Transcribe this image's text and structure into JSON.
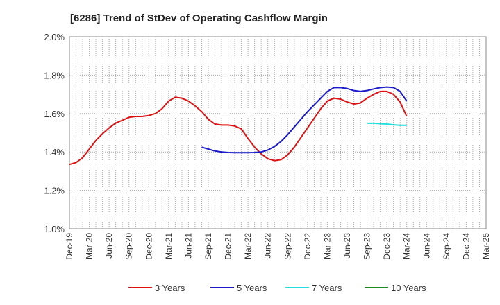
{
  "chart_data": {
    "type": "line",
    "title": "[6286]  Trend of StDev of Operating Cashflow Margin",
    "xlabel": "",
    "ylabel": "",
    "ylim": [
      1.0,
      2.0
    ],
    "yticks": [
      "1.0%",
      "1.2%",
      "1.4%",
      "1.6%",
      "1.8%",
      "2.0%"
    ],
    "x_start": "Dec-19",
    "x_end": "Mar-25",
    "xticks": [
      "Dec-19",
      "Mar-20",
      "Jun-20",
      "Sep-20",
      "Dec-20",
      "Mar-21",
      "Jun-21",
      "Sep-21",
      "Dec-21",
      "Mar-22",
      "Jun-22",
      "Sep-22",
      "Dec-22",
      "Mar-23",
      "Jun-23",
      "Sep-23",
      "Dec-23",
      "Mar-24",
      "Jun-24",
      "Sep-24",
      "Dec-24",
      "Mar-25"
    ],
    "grid": true,
    "legend_position": "bottom",
    "series": [
      {
        "name": "3 Years",
        "color": "#dd1111",
        "values": [
          [
            "Dec-19",
            1.335
          ],
          [
            "Jan-20",
            1.345
          ],
          [
            "Feb-20",
            1.37
          ],
          [
            "Mar-20",
            1.415
          ],
          [
            "Apr-20",
            1.46
          ],
          [
            "May-20",
            1.495
          ],
          [
            "Jun-20",
            1.525
          ],
          [
            "Jul-20",
            1.55
          ],
          [
            "Aug-20",
            1.565
          ],
          [
            "Sep-20",
            1.58
          ],
          [
            "Oct-20",
            1.585
          ],
          [
            "Nov-20",
            1.585
          ],
          [
            "Dec-20",
            1.59
          ],
          [
            "Jan-21",
            1.6
          ],
          [
            "Feb-21",
            1.625
          ],
          [
            "Mar-21",
            1.665
          ],
          [
            "Apr-21",
            1.685
          ],
          [
            "May-21",
            1.68
          ],
          [
            "Jun-21",
            1.665
          ],
          [
            "Jul-21",
            1.64
          ],
          [
            "Aug-21",
            1.61
          ],
          [
            "Sep-21",
            1.57
          ],
          [
            "Oct-21",
            1.545
          ],
          [
            "Nov-21",
            1.54
          ],
          [
            "Dec-21",
            1.54
          ],
          [
            "Jan-22",
            1.535
          ],
          [
            "Feb-22",
            1.52
          ],
          [
            "Mar-22",
            1.47
          ],
          [
            "Apr-22",
            1.425
          ],
          [
            "May-22",
            1.39
          ],
          [
            "Jun-22",
            1.365
          ],
          [
            "Jul-22",
            1.355
          ],
          [
            "Aug-22",
            1.36
          ],
          [
            "Sep-22",
            1.385
          ],
          [
            "Oct-22",
            1.425
          ],
          [
            "Nov-22",
            1.475
          ],
          [
            "Dec-22",
            1.525
          ],
          [
            "Jan-23",
            1.575
          ],
          [
            "Feb-23",
            1.625
          ],
          [
            "Mar-23",
            1.665
          ],
          [
            "Apr-23",
            1.68
          ],
          [
            "May-23",
            1.675
          ],
          [
            "Jun-23",
            1.66
          ],
          [
            "Jul-23",
            1.65
          ],
          [
            "Aug-23",
            1.655
          ],
          [
            "Sep-23",
            1.68
          ],
          [
            "Oct-23",
            1.7
          ],
          [
            "Nov-23",
            1.715
          ],
          [
            "Dec-23",
            1.715
          ],
          [
            "Jan-24",
            1.7
          ],
          [
            "Feb-24",
            1.66
          ],
          [
            "Mar-24",
            1.585
          ]
        ]
      },
      {
        "name": "5 Years",
        "color": "#1a1acc",
        "values": [
          [
            "Dec-20",
            null
          ],
          [
            "Aug-21",
            1.425
          ],
          [
            "Sep-21",
            1.415
          ],
          [
            "Oct-21",
            1.405
          ],
          [
            "Nov-21",
            1.4
          ],
          [
            "Dec-21",
            1.397
          ],
          [
            "Jan-22",
            1.396
          ],
          [
            "Feb-22",
            1.396
          ],
          [
            "Mar-22",
            1.396
          ],
          [
            "Apr-22",
            1.397
          ],
          [
            "May-22",
            1.4
          ],
          [
            "Jun-22",
            1.41
          ],
          [
            "Jul-22",
            1.428
          ],
          [
            "Aug-22",
            1.455
          ],
          [
            "Sep-22",
            1.49
          ],
          [
            "Oct-22",
            1.53
          ],
          [
            "Nov-22",
            1.57
          ],
          [
            "Dec-22",
            1.61
          ],
          [
            "Jan-23",
            1.645
          ],
          [
            "Feb-23",
            1.68
          ],
          [
            "Mar-23",
            1.715
          ],
          [
            "Apr-23",
            1.735
          ],
          [
            "May-23",
            1.735
          ],
          [
            "Jun-23",
            1.73
          ],
          [
            "Jul-23",
            1.72
          ],
          [
            "Aug-23",
            1.715
          ],
          [
            "Sep-23",
            1.72
          ],
          [
            "Oct-23",
            1.728
          ],
          [
            "Nov-23",
            1.735
          ],
          [
            "Dec-23",
            1.738
          ],
          [
            "Jan-24",
            1.735
          ],
          [
            "Feb-24",
            1.715
          ],
          [
            "Mar-24",
            1.665
          ]
        ]
      },
      {
        "name": "7 Years",
        "color": "#22dddd",
        "values": [
          [
            "Sep-23",
            1.549
          ],
          [
            "Oct-23",
            1.549
          ],
          [
            "Nov-23",
            1.547
          ],
          [
            "Dec-23",
            1.545
          ],
          [
            "Jan-24",
            1.541
          ],
          [
            "Feb-24",
            1.539
          ],
          [
            "Mar-24",
            1.539
          ]
        ]
      },
      {
        "name": "10 Years",
        "color": "#228822",
        "values": []
      }
    ]
  }
}
